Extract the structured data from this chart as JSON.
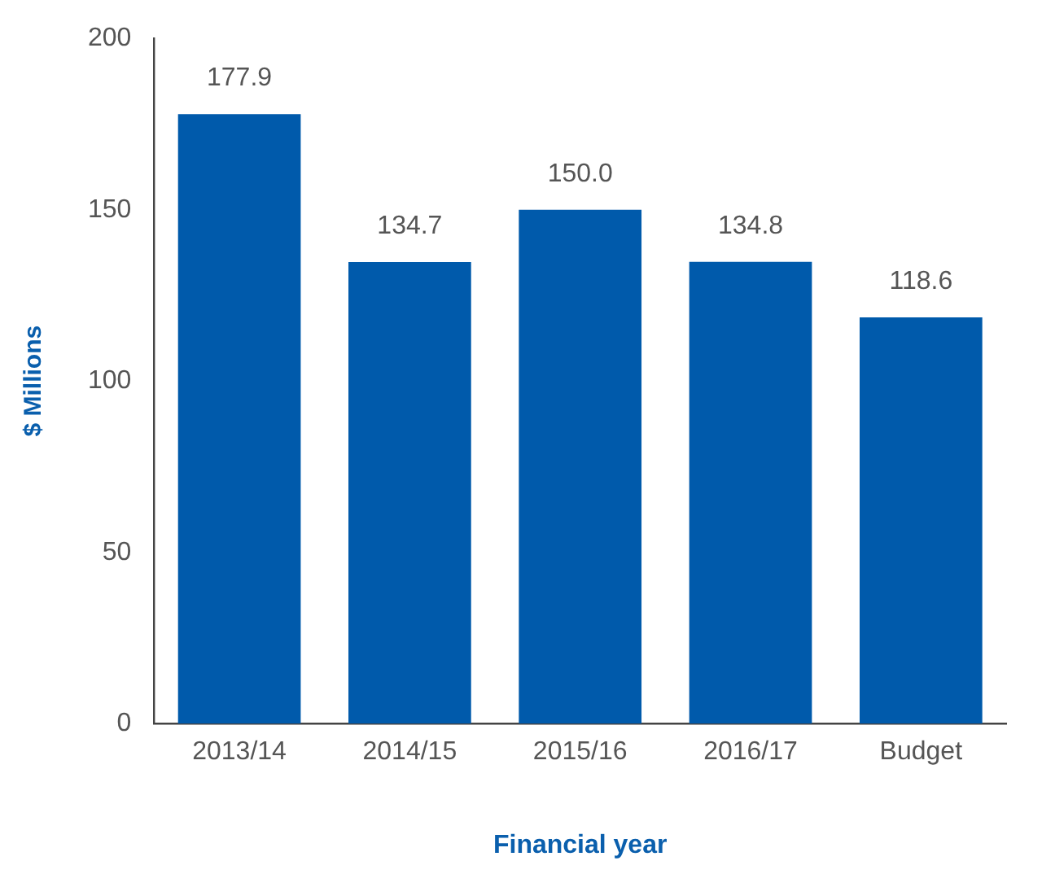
{
  "chart_data": {
    "type": "bar",
    "xlabel": "Financial year",
    "ylabel": "$ Millions",
    "categories": [
      "2013/14",
      "2014/15",
      "2015/16",
      "2016/17",
      "Budget"
    ],
    "values": [
      177.9,
      134.7,
      150.0,
      134.8,
      118.6
    ],
    "value_labels": [
      "177.9",
      "134.7",
      "150.0",
      "134.8",
      "118.6"
    ],
    "color": "#005aab",
    "ylim": [
      0,
      200
    ],
    "yticks": [
      0,
      50,
      100,
      150,
      200
    ],
    "grid": false,
    "legend": false
  }
}
